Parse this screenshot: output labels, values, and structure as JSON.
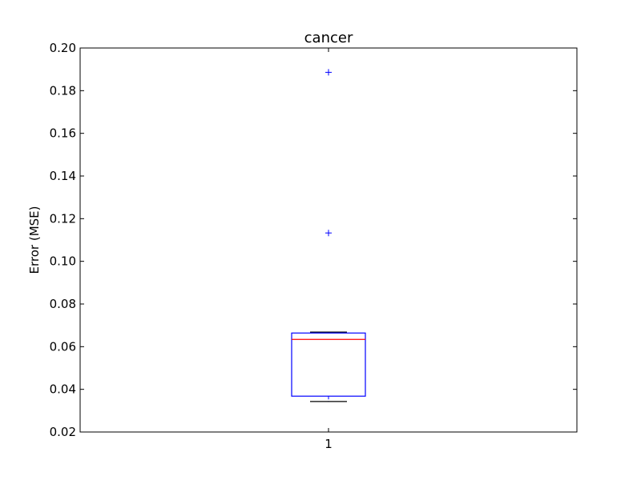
{
  "chart_data": {
    "type": "box",
    "title": "cancer",
    "xlabel": "",
    "ylabel": "Error (MSE)",
    "ylim": [
      0.02,
      0.2
    ],
    "yticks": [
      0.02,
      0.04,
      0.06,
      0.08,
      0.1,
      0.12,
      0.14,
      0.16,
      0.18,
      0.2
    ],
    "ytick_labels": [
      "0.02",
      "0.04",
      "0.06",
      "0.08",
      "0.10",
      "0.12",
      "0.14",
      "0.16",
      "0.18",
      "0.20"
    ],
    "xticks": [
      1
    ],
    "xtick_labels": [
      "1"
    ],
    "grid": false,
    "boxes": [
      {
        "position": 1,
        "whisker_low": 0.0343,
        "q1": 0.0368,
        "median": 0.0634,
        "q3": 0.0664,
        "whisker_high": 0.0668,
        "outliers": [
          0.1133,
          0.1886
        ]
      }
    ],
    "colors": {
      "box": "#0000ff",
      "median": "#ff0000",
      "whisker": "#000000",
      "cap": "#000000",
      "outlier": "#0000ff"
    }
  }
}
